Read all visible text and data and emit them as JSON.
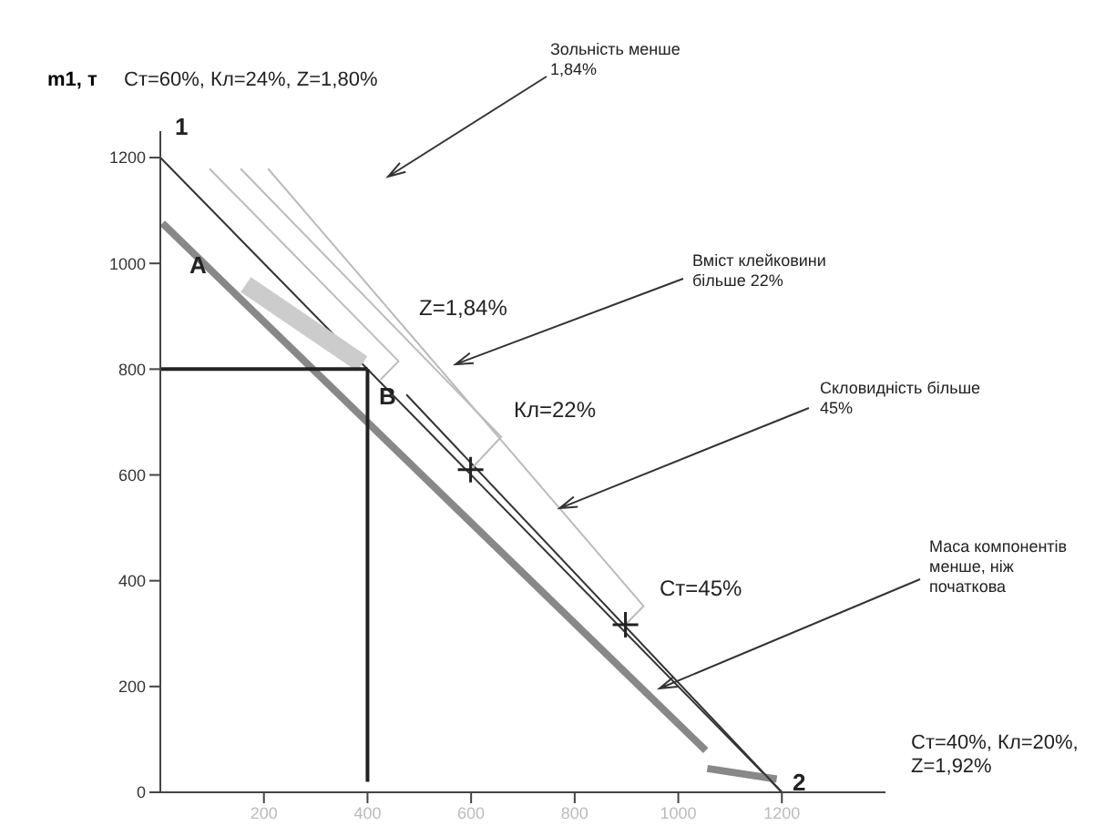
{
  "chart_data": {
    "type": "line",
    "ylabel": "m1, т",
    "xlim": [
      0,
      1400
    ],
    "xticks": [
      200,
      400,
      600,
      800,
      1000,
      1200
    ],
    "ylim": [
      0,
      1250
    ],
    "yticks": [
      0,
      200,
      400,
      600,
      800,
      1000,
      1200
    ],
    "marker": "none",
    "series": [
      {
        "color": "#333333",
        "x": [
          0,
          1200
        ],
        "values": [
          1200,
          0
        ]
      },
      {
        "color": "#888888",
        "x": [
          4,
          1053
        ],
        "values": [
          1076,
          79
        ]
      },
      {
        "color": "#888888",
        "x": [
          1056,
          1190
        ],
        "values": [
          45,
          25
        ]
      },
      {
        "color": "#cccccc",
        "x": [
          165,
          390
        ],
        "values": [
          960,
          810
        ]
      },
      {
        "color": "#222222",
        "x": [
          400,
          0
        ],
        "values": [
          800,
          800
        ]
      },
      {
        "color": "#222222",
        "x": [
          400,
          400
        ],
        "values": [
          800,
          20
        ]
      },
      {
        "color": "#333333",
        "x": [
          475,
          1200
        ],
        "values": [
          752,
          0
        ]
      },
      {
        "color": "#bbbbbb",
        "x": [
          95,
          460,
          425
        ],
        "values": [
          1179,
          815,
          780
        ]
      },
      {
        "color": "#bbbbbb",
        "x": [
          155,
          658,
          599
        ],
        "values": [
          1179,
          672,
          610
        ]
      },
      {
        "color": "#bbbbbb",
        "x": [
          208,
          933,
          898
        ],
        "values": [
          1179,
          352,
          317
        ]
      },
      {
        "type": "scatter",
        "marker": "cross",
        "color": "#222222",
        "x": [
          599,
          898
        ],
        "values": [
          610,
          317
        ]
      }
    ],
    "annotations": [
      "Ст=60%, Кл=24%, Z=1,80%",
      "1",
      "2",
      "Ст=40%, Кл=20%, Z=1,92%",
      "A",
      "B",
      "Z=1,84%",
      "Кл=22%",
      "Ст=45%",
      "Зольність менше 1,84%",
      "Вміст клейковини більше 22%",
      {
        "text": "Скловидність більше 45%",
        "x": 771,
        "y": 537
      },
      "Маса компонентів менше, ніж початкова"
    ]
  }
}
